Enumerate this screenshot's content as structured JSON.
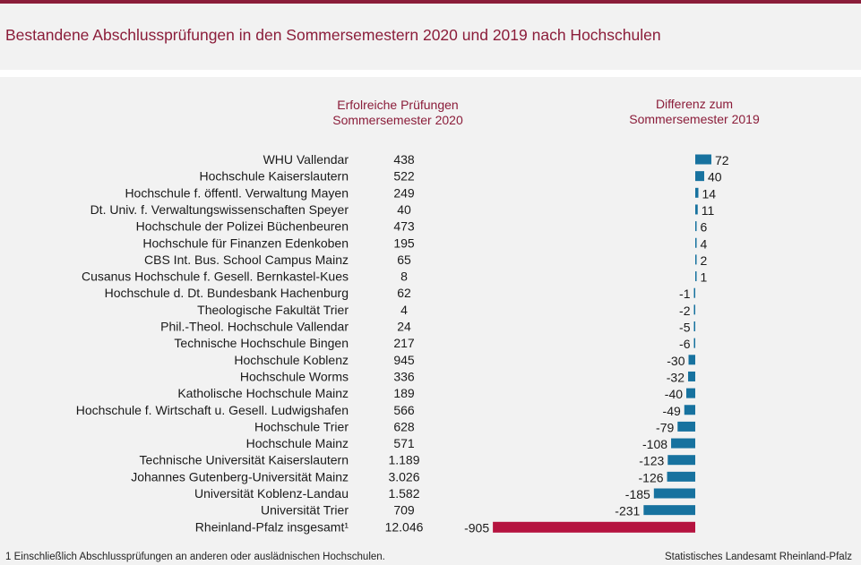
{
  "title": "Bestandene Abschlussprüfungen in den Sommersemestern 2020 und 2019 nach Hochschulen",
  "column_headers": {
    "exams_2020": [
      "Erfolreiche Prüfungen",
      "Sommersemester 2020"
    ],
    "difference": [
      "Differenz zum",
      "Sommersemester 2019"
    ]
  },
  "footnote": "1 Einschließlich Abschlussprüfungen  an anderen  oder auslädnischen  Hochschulen.",
  "source": "Statistisches Landesamt Rheinland-Pfalz",
  "colors": {
    "brand": "#8b1d3a",
    "bar_positive_negative": "#17729f",
    "bar_total": "#b5133f",
    "background_panel": "#f2f2f2"
  },
  "chart_data": {
    "type": "bar",
    "orientation": "horizontal",
    "categories": [
      "WHU Vallendar",
      "Hochschule Kaiserslautern",
      "Hochschule f. öffentl. Verwaltung Mayen",
      "Dt. Univ. f. Verwaltungswissenschaften Speyer",
      "Hochschule der Polizei Büchenbeuren",
      "Hochschule für Finanzen Edenkoben",
      "CBS Int. Bus. School Campus Mainz",
      "Cusanus Hochschule f. Gesell. Bernkastel-Kues",
      "Hochschule d. Dt. Bundesbank Hachenburg",
      "Theologische Fakultät Trier",
      "Phil.-Theol. Hochschule Vallendar",
      "Technische Hochschule Bingen",
      "Hochschule Koblenz",
      "Hochschule Worms",
      "Katholische Hochschule Mainz",
      "Hochschule f. Wirtschaft u. Gesell. Ludwigshafen",
      "Hochschule Trier",
      "Hochschule Mainz",
      "Technische Universität Kaiserslautern",
      "Johannes Gutenberg-Universität Mainz",
      "Universität Koblenz-Landau",
      "Universität Trier",
      "Rheinland-Pfalz insgesamt¹"
    ],
    "exams_2020_labels": [
      "438",
      "522",
      "249",
      "40",
      "473",
      "195",
      "65",
      "8",
      "62",
      "4",
      "24",
      "217",
      "945",
      "336",
      "189",
      "566",
      "628",
      "571",
      "1.189",
      "3.026",
      "1.582",
      "709",
      "12.046"
    ],
    "exams_2020": [
      438,
      522,
      249,
      40,
      473,
      195,
      65,
      8,
      62,
      4,
      24,
      217,
      945,
      336,
      189,
      566,
      628,
      571,
      1189,
      3026,
      1582,
      709,
      12046
    ],
    "difference_to_2019": [
      72,
      40,
      14,
      11,
      6,
      4,
      2,
      1,
      -1,
      -2,
      -5,
      -6,
      -30,
      -32,
      -40,
      -49,
      -79,
      -108,
      -123,
      -126,
      -185,
      -231,
      -905
    ],
    "difference_labels": [
      "72",
      "40",
      "14",
      "11",
      "6",
      "4",
      "2",
      "1",
      "-1",
      "-2",
      "-5",
      "-6",
      "-30",
      "-32",
      "-40",
      "-49",
      "-79",
      "-108",
      "-123",
      "-126",
      "-185",
      "-231",
      "-905"
    ],
    "total_row_index": 22,
    "grid": false,
    "legend": "none"
  }
}
